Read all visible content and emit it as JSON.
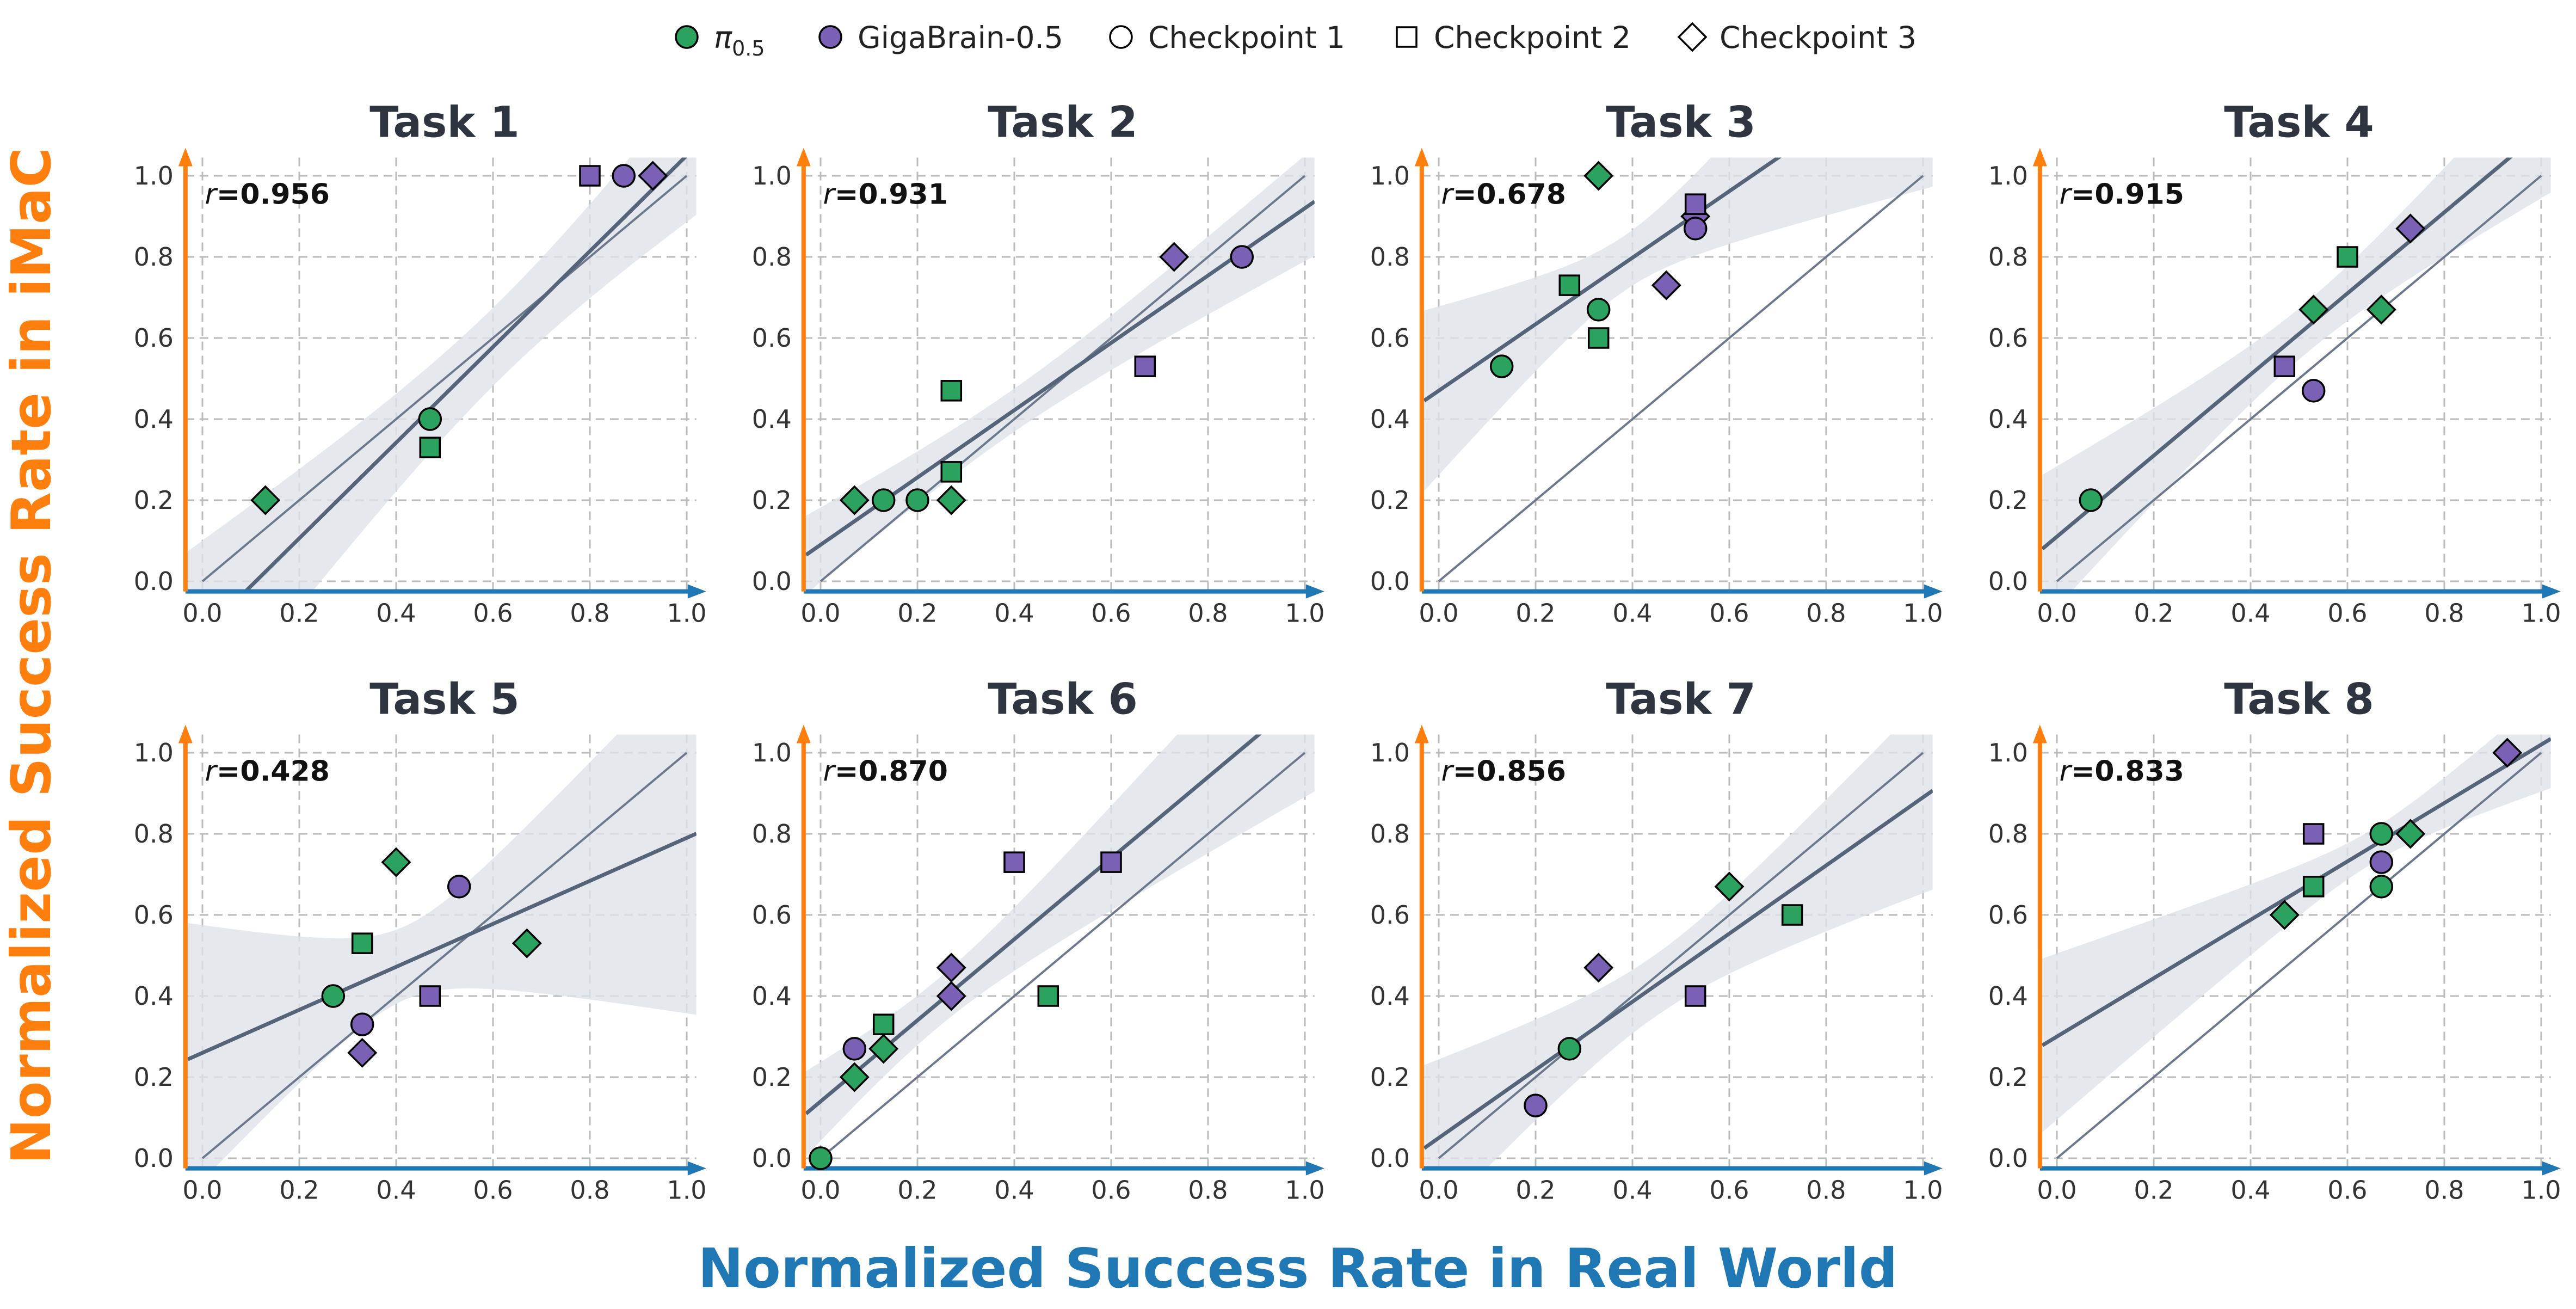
{
  "colors": {
    "pi": "#2ca25f",
    "gigabrain": "#7b61b5",
    "fit_line": "#556479",
    "identity_line": "#6c788c",
    "band": "#dfe3e8",
    "x_axis": "#1f77b4",
    "y_axis": "#ff7f0e",
    "grid": "#bbbbbb"
  },
  "legend": [
    {
      "label_main": "π",
      "label_sub": "0.5",
      "marker": "circle",
      "color": "#2ca25f"
    },
    {
      "label_main": "GigaBrain-0.5",
      "label_sub": "",
      "marker": "circle",
      "color": "#7b61b5"
    },
    {
      "label_main": "Checkpoint 1",
      "label_sub": "",
      "marker": "circle",
      "color": "#ffffff"
    },
    {
      "label_main": "Checkpoint 2",
      "label_sub": "",
      "marker": "square",
      "color": "#ffffff"
    },
    {
      "label_main": "Checkpoint 3",
      "label_sub": "",
      "marker": "diamond",
      "color": "#ffffff"
    }
  ],
  "x_axis_title": "Normalized Success Rate in Real World",
  "y_axis_title": "Normalized Success Rate in iMaC",
  "chart_data": [
    {
      "type": "scatter",
      "title": "Task 1",
      "r_value": "0.956",
      "xlim": [
        0,
        1
      ],
      "ylim": [
        0,
        1
      ],
      "ticks": [
        "0.0",
        "0.2",
        "0.4",
        "0.6",
        "0.8",
        "1.0"
      ],
      "fit": {
        "intercept": -0.13,
        "slope": 1.18
      },
      "points": [
        {
          "model": "pi0.5",
          "checkpoint": 3,
          "x": 0.13,
          "y": 0.2
        },
        {
          "model": "pi0.5",
          "checkpoint": 1,
          "x": 0.47,
          "y": 0.4
        },
        {
          "model": "pi0.5",
          "checkpoint": 2,
          "x": 0.47,
          "y": 0.33
        },
        {
          "model": "GigaBrain-0.5",
          "checkpoint": 2,
          "x": 0.8,
          "y": 1.0
        },
        {
          "model": "GigaBrain-0.5",
          "checkpoint": 1,
          "x": 0.87,
          "y": 1.0
        },
        {
          "model": "GigaBrain-0.5",
          "checkpoint": 3,
          "x": 0.93,
          "y": 1.0
        }
      ]
    },
    {
      "type": "scatter",
      "title": "Task 2",
      "r_value": "0.931",
      "xlim": [
        0,
        1
      ],
      "ylim": [
        0,
        1
      ],
      "ticks": [
        "0.0",
        "0.2",
        "0.4",
        "0.6",
        "0.8",
        "1.0"
      ],
      "fit": {
        "intercept": 0.09,
        "slope": 0.83
      },
      "points": [
        {
          "model": "pi0.5",
          "checkpoint": 3,
          "x": 0.07,
          "y": 0.2
        },
        {
          "model": "pi0.5",
          "checkpoint": 1,
          "x": 0.13,
          "y": 0.2
        },
        {
          "model": "pi0.5",
          "checkpoint": 1,
          "x": 0.2,
          "y": 0.2
        },
        {
          "model": "pi0.5",
          "checkpoint": 2,
          "x": 0.27,
          "y": 0.47
        },
        {
          "model": "pi0.5",
          "checkpoint": 2,
          "x": 0.27,
          "y": 0.27
        },
        {
          "model": "pi0.5",
          "checkpoint": 3,
          "x": 0.27,
          "y": 0.2
        },
        {
          "model": "GigaBrain-0.5",
          "checkpoint": 2,
          "x": 0.67,
          "y": 0.53
        },
        {
          "model": "GigaBrain-0.5",
          "checkpoint": 3,
          "x": 0.73,
          "y": 0.8
        },
        {
          "model": "GigaBrain-0.5",
          "checkpoint": 1,
          "x": 0.87,
          "y": 0.8
        }
      ]
    },
    {
      "type": "scatter",
      "title": "Task 3",
      "r_value": "0.678",
      "xlim": [
        0,
        1
      ],
      "ylim": [
        0,
        1
      ],
      "ticks": [
        "0.0",
        "0.2",
        "0.4",
        "0.6",
        "0.8",
        "1.0"
      ],
      "fit": {
        "intercept": 0.47,
        "slope": 0.82
      },
      "points": [
        {
          "model": "pi0.5",
          "checkpoint": 1,
          "x": 0.13,
          "y": 0.53
        },
        {
          "model": "pi0.5",
          "checkpoint": 2,
          "x": 0.27,
          "y": 0.73
        },
        {
          "model": "pi0.5",
          "checkpoint": 1,
          "x": 0.33,
          "y": 0.67
        },
        {
          "model": "pi0.5",
          "checkpoint": 2,
          "x": 0.33,
          "y": 0.6
        },
        {
          "model": "pi0.5",
          "checkpoint": 3,
          "x": 0.33,
          "y": 1.0
        },
        {
          "model": "GigaBrain-0.5",
          "checkpoint": 3,
          "x": 0.47,
          "y": 0.73
        },
        {
          "model": "GigaBrain-0.5",
          "checkpoint": 3,
          "x": 0.53,
          "y": 0.9
        },
        {
          "model": "GigaBrain-0.5",
          "checkpoint": 2,
          "x": 0.53,
          "y": 0.93
        },
        {
          "model": "GigaBrain-0.5",
          "checkpoint": 1,
          "x": 0.53,
          "y": 0.87
        }
      ]
    },
    {
      "type": "scatter",
      "title": "Task 4",
      "r_value": "0.915",
      "xlim": [
        0,
        1
      ],
      "ylim": [
        0,
        1
      ],
      "ticks": [
        "0.0",
        "0.2",
        "0.4",
        "0.6",
        "0.8",
        "1.0"
      ],
      "fit": {
        "intercept": 0.11,
        "slope": 1.0
      },
      "points": [
        {
          "model": "pi0.5",
          "checkpoint": 1,
          "x": 0.07,
          "y": 0.2
        },
        {
          "model": "pi0.5",
          "checkpoint": 3,
          "x": 0.53,
          "y": 0.67
        },
        {
          "model": "pi0.5",
          "checkpoint": 2,
          "x": 0.6,
          "y": 0.8
        },
        {
          "model": "pi0.5",
          "checkpoint": 3,
          "x": 0.67,
          "y": 0.67
        },
        {
          "model": "GigaBrain-0.5",
          "checkpoint": 2,
          "x": 0.47,
          "y": 0.53
        },
        {
          "model": "GigaBrain-0.5",
          "checkpoint": 1,
          "x": 0.53,
          "y": 0.47
        },
        {
          "model": "GigaBrain-0.5",
          "checkpoint": 3,
          "x": 0.73,
          "y": 0.87
        }
      ]
    },
    {
      "type": "scatter",
      "title": "Task 5",
      "r_value": "0.428",
      "xlim": [
        0,
        1
      ],
      "ylim": [
        0,
        1
      ],
      "ticks": [
        "0.0",
        "0.2",
        "0.4",
        "0.6",
        "0.8",
        "1.0"
      ],
      "fit": {
        "intercept": 0.26,
        "slope": 0.53
      },
      "points": [
        {
          "model": "pi0.5",
          "checkpoint": 1,
          "x": 0.27,
          "y": 0.4
        },
        {
          "model": "pi0.5",
          "checkpoint": 2,
          "x": 0.33,
          "y": 0.53
        },
        {
          "model": "pi0.5",
          "checkpoint": 3,
          "x": 0.4,
          "y": 0.73
        },
        {
          "model": "pi0.5",
          "checkpoint": 3,
          "x": 0.67,
          "y": 0.53
        },
        {
          "model": "GigaBrain-0.5",
          "checkpoint": 1,
          "x": 0.33,
          "y": 0.33
        },
        {
          "model": "GigaBrain-0.5",
          "checkpoint": 3,
          "x": 0.33,
          "y": 0.26
        },
        {
          "model": "GigaBrain-0.5",
          "checkpoint": 2,
          "x": 0.47,
          "y": 0.4
        },
        {
          "model": "GigaBrain-0.5",
          "checkpoint": 1,
          "x": 0.53,
          "y": 0.67
        }
      ]
    },
    {
      "type": "scatter",
      "title": "Task 6",
      "r_value": "0.870",
      "xlim": [
        0,
        1
      ],
      "ylim": [
        0,
        1
      ],
      "ticks": [
        "0.0",
        "0.2",
        "0.4",
        "0.6",
        "0.8",
        "1.0"
      ],
      "fit": {
        "intercept": 0.14,
        "slope": 1.0
      },
      "points": [
        {
          "model": "pi0.5",
          "checkpoint": 1,
          "x": 0.0,
          "y": 0.0
        },
        {
          "model": "pi0.5",
          "checkpoint": 3,
          "x": 0.07,
          "y": 0.2
        },
        {
          "model": "pi0.5",
          "checkpoint": 2,
          "x": 0.13,
          "y": 0.33
        },
        {
          "model": "pi0.5",
          "checkpoint": 3,
          "x": 0.13,
          "y": 0.27
        },
        {
          "model": "pi0.5",
          "checkpoint": 2,
          "x": 0.47,
          "y": 0.4
        },
        {
          "model": "GigaBrain-0.5",
          "checkpoint": 1,
          "x": 0.07,
          "y": 0.27
        },
        {
          "model": "GigaBrain-0.5",
          "checkpoint": 3,
          "x": 0.27,
          "y": 0.47
        },
        {
          "model": "GigaBrain-0.5",
          "checkpoint": 3,
          "x": 0.27,
          "y": 0.4
        },
        {
          "model": "GigaBrain-0.5",
          "checkpoint": 2,
          "x": 0.4,
          "y": 0.73
        },
        {
          "model": "GigaBrain-0.5",
          "checkpoint": 2,
          "x": 0.6,
          "y": 0.73
        }
      ]
    },
    {
      "type": "scatter",
      "title": "Task 7",
      "r_value": "0.856",
      "xlim": [
        0,
        1
      ],
      "ylim": [
        0,
        1
      ],
      "ticks": [
        "0.0",
        "0.2",
        "0.4",
        "0.6",
        "0.8",
        "1.0"
      ],
      "fit": {
        "intercept": 0.05,
        "slope": 0.84
      },
      "points": [
        {
          "model": "pi0.5",
          "checkpoint": 1,
          "x": 0.27,
          "y": 0.27
        },
        {
          "model": "pi0.5",
          "checkpoint": 3,
          "x": 0.6,
          "y": 0.67
        },
        {
          "model": "pi0.5",
          "checkpoint": 2,
          "x": 0.73,
          "y": 0.6
        },
        {
          "model": "GigaBrain-0.5",
          "checkpoint": 1,
          "x": 0.2,
          "y": 0.13
        },
        {
          "model": "GigaBrain-0.5",
          "checkpoint": 3,
          "x": 0.33,
          "y": 0.47
        },
        {
          "model": "GigaBrain-0.5",
          "checkpoint": 2,
          "x": 0.53,
          "y": 0.4
        }
      ]
    },
    {
      "type": "scatter",
      "title": "Task 8",
      "r_value": "0.833",
      "xlim": [
        0,
        1
      ],
      "ylim": [
        0,
        1
      ],
      "ticks": [
        "0.0",
        "0.2",
        "0.4",
        "0.6",
        "0.8",
        "1.0"
      ],
      "fit": {
        "intercept": 0.3,
        "slope": 0.72
      },
      "points": [
        {
          "model": "pi0.5",
          "checkpoint": 3,
          "x": 0.47,
          "y": 0.6
        },
        {
          "model": "pi0.5",
          "checkpoint": 2,
          "x": 0.53,
          "y": 0.67
        },
        {
          "model": "pi0.5",
          "checkpoint": 1,
          "x": 0.67,
          "y": 0.8
        },
        {
          "model": "pi0.5",
          "checkpoint": 1,
          "x": 0.67,
          "y": 0.67
        },
        {
          "model": "pi0.5",
          "checkpoint": 3,
          "x": 0.73,
          "y": 0.8
        },
        {
          "model": "GigaBrain-0.5",
          "checkpoint": 2,
          "x": 0.53,
          "y": 0.8
        },
        {
          "model": "GigaBrain-0.5",
          "checkpoint": 1,
          "x": 0.67,
          "y": 0.73
        },
        {
          "model": "GigaBrain-0.5",
          "checkpoint": 3,
          "x": 0.93,
          "y": 1.0
        }
      ]
    }
  ]
}
